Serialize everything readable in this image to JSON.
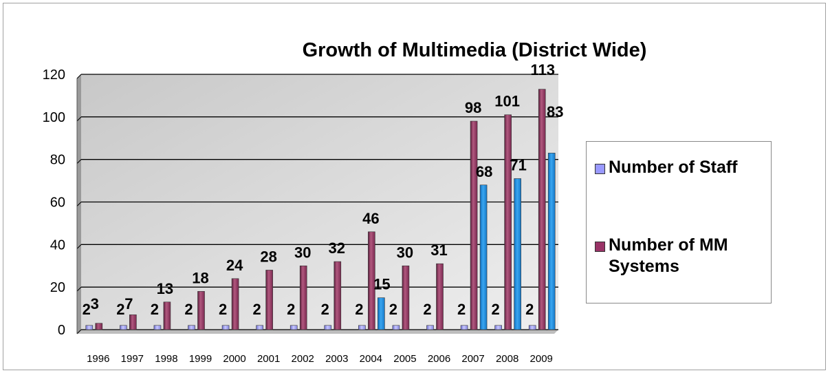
{
  "chart_data": {
    "type": "bar",
    "title": "Growth of Multimedia (District Wide)",
    "categories": [
      "1996",
      "1997",
      "1998",
      "1999",
      "2000",
      "2001",
      "2002",
      "2003",
      "2004",
      "2005",
      "2006",
      "2007",
      "2008",
      "2009"
    ],
    "series": [
      {
        "name": "Number of Staff",
        "values": [
          2,
          2,
          2,
          2,
          2,
          2,
          2,
          2,
          2,
          2,
          2,
          2,
          2,
          2
        ],
        "color": "#9999ff"
      },
      {
        "name": "Number of MM Systems",
        "values": [
          3,
          7,
          13,
          18,
          24,
          28,
          30,
          32,
          46,
          30,
          31,
          98,
          101,
          113
        ],
        "color": "#993366"
      },
      {
        "values": [
          null,
          null,
          null,
          null,
          null,
          null,
          null,
          null,
          15,
          null,
          null,
          68,
          71,
          83
        ],
        "color": "#1e88d8"
      }
    ],
    "ylim": [
      0,
      120
    ],
    "yticks": [
      0,
      20,
      40,
      60,
      80,
      100,
      120
    ],
    "grid": true,
    "legend_position": "right"
  },
  "legend": {
    "items": [
      {
        "label": "Number of Staff",
        "color": "#9999ff"
      },
      {
        "label": "Number of MM Systems",
        "color": "#993366"
      }
    ]
  }
}
